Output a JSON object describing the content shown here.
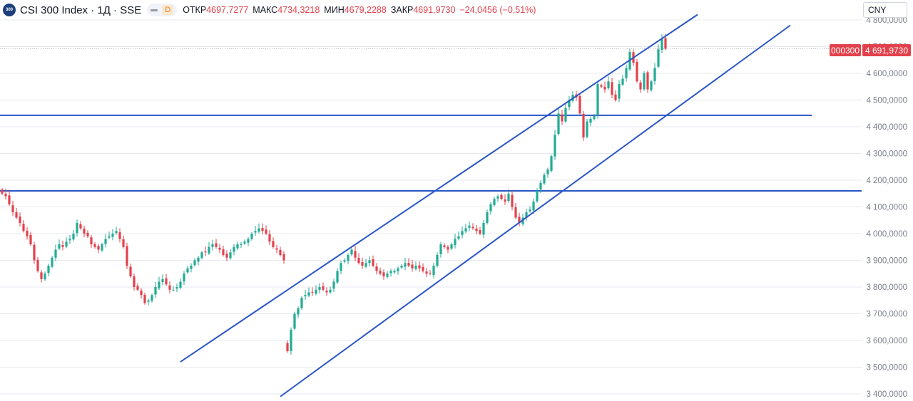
{
  "header": {
    "symbol_logo_text": "300",
    "title": "CSI 300 Index · 1Д · SSE",
    "interval_badge": "D",
    "open_label": "ОТКР",
    "open_value": "4697,7277",
    "high_label": "МАКС",
    "high_value": "4734,3218",
    "low_label": "МИН",
    "low_value": "4679,2288",
    "close_label": "ЗАКР",
    "close_value": "4691,9730",
    "change": "−24,0456 (−0,51%)"
  },
  "currency": {
    "label": "CNY"
  },
  "price_tags": {
    "symbol": "000300",
    "last_price": "4 691,9730"
  },
  "colors": {
    "up": "#22ab94",
    "down": "#e2414c",
    "drawing": "#2a56c6",
    "grid": "#e6e8ef",
    "axis_text": "#7a7e8a",
    "tag": "#e2414c"
  },
  "chart_data": {
    "type": "candlestick",
    "title": "CSI 300 Index · 1Д · SSE",
    "yticks": [
      "3 400,0000",
      "3 500,0000",
      "3 600,0000",
      "3 700,0000",
      "3 800,0000",
      "3 900,0000",
      "4 000,0000",
      "4 100,0000",
      "4 200,0000",
      "4 300,0000",
      "4 400,0000",
      "4 500,0000",
      "4 600,0000",
      "4 700,0000",
      "4 800,0000"
    ],
    "ylim": [
      3390,
      4850
    ],
    "grid": true,
    "y_scale": "linear",
    "last_price": 4691.973,
    "close": [
      4150,
      4140,
      4110,
      4080,
      4060,
      4040,
      4010,
      3990,
      3960,
      3900,
      3860,
      3830,
      3850,
      3880,
      3910,
      3940,
      3960,
      3950,
      3970,
      3980,
      4000,
      4040,
      4020,
      4000,
      3990,
      3960,
      3950,
      3940,
      3960,
      3980,
      3990,
      4000,
      4010,
      3980,
      3950,
      3880,
      3840,
      3800,
      3790,
      3770,
      3740,
      3750,
      3770,
      3800,
      3820,
      3830,
      3810,
      3790,
      3790,
      3800,
      3820,
      3850,
      3870,
      3880,
      3900,
      3910,
      3930,
      3930,
      3950,
      3960,
      3950,
      3940,
      3920,
      3910,
      3930,
      3950,
      3960,
      3960,
      3970,
      3980,
      4000,
      4010,
      4020,
      4010,
      4000,
      3970,
      3950,
      3940,
      3920,
      3900,
      3560,
      3640,
      3700,
      3720,
      3760,
      3770,
      3780,
      3780,
      3790,
      3800,
      3790,
      3780,
      3790,
      3820,
      3860,
      3890,
      3900,
      3920,
      3940,
      3910,
      3890,
      3880,
      3890,
      3900,
      3880,
      3860,
      3850,
      3840,
      3850,
      3860,
      3860,
      3870,
      3880,
      3890,
      3880,
      3870,
      3880,
      3870,
      3860,
      3850,
      3850,
      3880,
      3920,
      3960,
      3950,
      3940,
      3960,
      3980,
      3990,
      4010,
      4020,
      4030,
      4020,
      4010,
      4000,
      4040,
      4080,
      4110,
      4130,
      4140,
      4130,
      4120,
      4150,
      4100,
      4060,
      4040,
      4060,
      4080,
      4090,
      4120,
      4160,
      4190,
      4220,
      4240,
      4290,
      4370,
      4450,
      4420,
      4470,
      4500,
      4520,
      4510,
      4450,
      4360,
      4420,
      4430,
      4440,
      4560,
      4550,
      4540,
      4570,
      4520,
      4500,
      4560,
      4580,
      4620,
      4680,
      4640,
      4570,
      4540,
      4600,
      4540,
      4570,
      4620,
      4690,
      4730,
      4692
    ],
    "horizontal_lines": [
      4443,
      4160
    ],
    "trend_channel": {
      "upper": {
        "start": [
          50,
          3520
        ],
        "end": [
          195,
          4820
        ]
      },
      "lower": {
        "start": [
          78,
          3390
        ],
        "end": [
          221,
          4780
        ]
      }
    },
    "candle_spacing": 5
  }
}
